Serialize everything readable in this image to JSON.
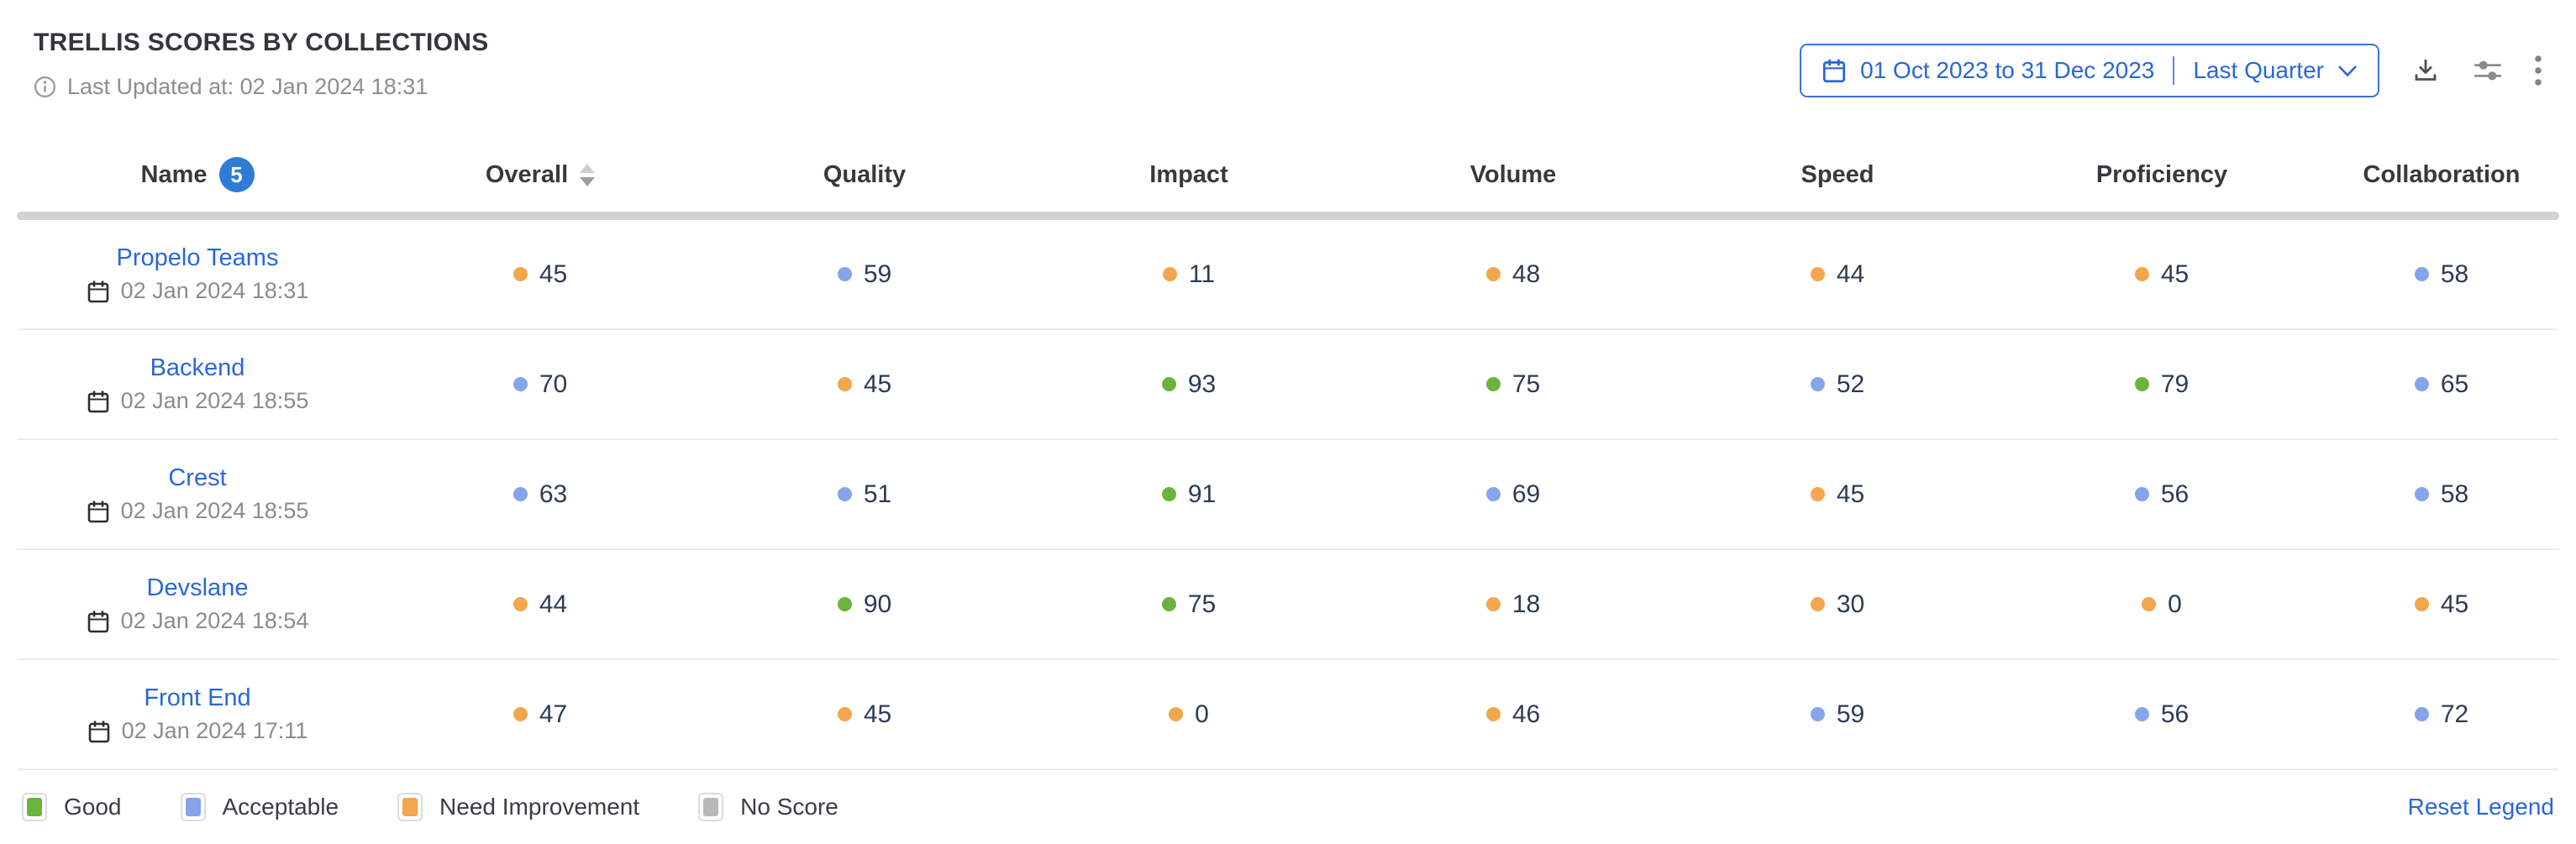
{
  "header": {
    "title": "TRELLIS SCORES BY COLLECTIONS",
    "last_updated": "Last Updated at: 02 Jan 2024 18:31",
    "date_range": {
      "range_text": "01 Oct 2023 to 31 Dec 2023",
      "preset_label": "Last Quarter"
    }
  },
  "table": {
    "name_header": "Name",
    "name_count_badge": "5",
    "columns": [
      "Overall",
      "Quality",
      "Impact",
      "Volume",
      "Speed",
      "Proficiency",
      "Collaboration"
    ],
    "rows": [
      {
        "name": "Propelo Teams",
        "timestamp": "02 Jan 2024 18:31",
        "scores": [
          {
            "value": 45,
            "status": "need-improvement"
          },
          {
            "value": 59,
            "status": "acceptable"
          },
          {
            "value": 11,
            "status": "need-improvement"
          },
          {
            "value": 48,
            "status": "need-improvement"
          },
          {
            "value": 44,
            "status": "need-improvement"
          },
          {
            "value": 45,
            "status": "need-improvement"
          },
          {
            "value": 58,
            "status": "acceptable"
          }
        ]
      },
      {
        "name": "Backend",
        "timestamp": "02 Jan 2024 18:55",
        "scores": [
          {
            "value": 70,
            "status": "acceptable"
          },
          {
            "value": 45,
            "status": "need-improvement"
          },
          {
            "value": 93,
            "status": "good"
          },
          {
            "value": 75,
            "status": "good"
          },
          {
            "value": 52,
            "status": "acceptable"
          },
          {
            "value": 79,
            "status": "good"
          },
          {
            "value": 65,
            "status": "acceptable"
          }
        ]
      },
      {
        "name": "Crest",
        "timestamp": "02 Jan 2024 18:55",
        "scores": [
          {
            "value": 63,
            "status": "acceptable"
          },
          {
            "value": 51,
            "status": "acceptable"
          },
          {
            "value": 91,
            "status": "good"
          },
          {
            "value": 69,
            "status": "acceptable"
          },
          {
            "value": 45,
            "status": "need-improvement"
          },
          {
            "value": 56,
            "status": "acceptable"
          },
          {
            "value": 58,
            "status": "acceptable"
          }
        ]
      },
      {
        "name": "Devslane",
        "timestamp": "02 Jan 2024 18:54",
        "scores": [
          {
            "value": 44,
            "status": "need-improvement"
          },
          {
            "value": 90,
            "status": "good"
          },
          {
            "value": 75,
            "status": "good"
          },
          {
            "value": 18,
            "status": "need-improvement"
          },
          {
            "value": 30,
            "status": "need-improvement"
          },
          {
            "value": 0,
            "status": "need-improvement"
          },
          {
            "value": 45,
            "status": "need-improvement"
          }
        ]
      },
      {
        "name": "Front End",
        "timestamp": "02 Jan 2024 17:11",
        "scores": [
          {
            "value": 47,
            "status": "need-improvement"
          },
          {
            "value": 45,
            "status": "need-improvement"
          },
          {
            "value": 0,
            "status": "need-improvement"
          },
          {
            "value": 46,
            "status": "need-improvement"
          },
          {
            "value": 59,
            "status": "acceptable"
          },
          {
            "value": 56,
            "status": "acceptable"
          },
          {
            "value": 72,
            "status": "acceptable"
          }
        ]
      }
    ]
  },
  "legend": {
    "items": [
      {
        "label": "Good",
        "status": "good"
      },
      {
        "label": "Acceptable",
        "status": "acceptable"
      },
      {
        "label": "Need Improvement",
        "status": "need-improvement"
      },
      {
        "label": "No Score",
        "status": "no-score"
      }
    ],
    "reset_label": "Reset Legend"
  },
  "colors": {
    "good": "#6cb33e",
    "acceptable": "#85a4e9",
    "need_improvement": "#f2a64d",
    "no_score": "#b9b9b9",
    "accent_blue": "#2a67d8"
  }
}
